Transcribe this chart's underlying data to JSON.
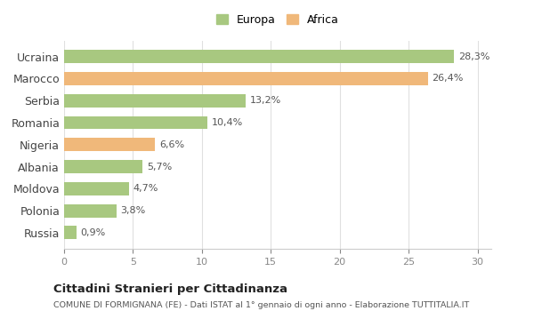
{
  "categories": [
    "Ucraina",
    "Marocco",
    "Serbia",
    "Romania",
    "Nigeria",
    "Albania",
    "Moldova",
    "Polonia",
    "Russia"
  ],
  "values": [
    28.3,
    26.4,
    13.2,
    10.4,
    6.6,
    5.7,
    4.7,
    3.8,
    0.9
  ],
  "labels": [
    "28,3%",
    "26,4%",
    "13,2%",
    "10,4%",
    "6,6%",
    "5,7%",
    "4,7%",
    "3,8%",
    "0,9%"
  ],
  "colors": [
    "#a8c880",
    "#f0b87a",
    "#a8c880",
    "#a8c880",
    "#f0b87a",
    "#a8c880",
    "#a8c880",
    "#a8c880",
    "#a8c880"
  ],
  "legend_europa_color": "#a8c880",
  "legend_africa_color": "#f0b87a",
  "xlim": [
    0,
    31
  ],
  "xticks": [
    0,
    5,
    10,
    15,
    20,
    25,
    30
  ],
  "title": "Cittadini Stranieri per Cittadinanza",
  "subtitle": "COMUNE DI FORMIGNANA (FE) - Dati ISTAT al 1° gennaio di ogni anno - Elaborazione TUTTITALIA.IT",
  "bg_color": "#ffffff",
  "grid_color": "#e0e0e0"
}
